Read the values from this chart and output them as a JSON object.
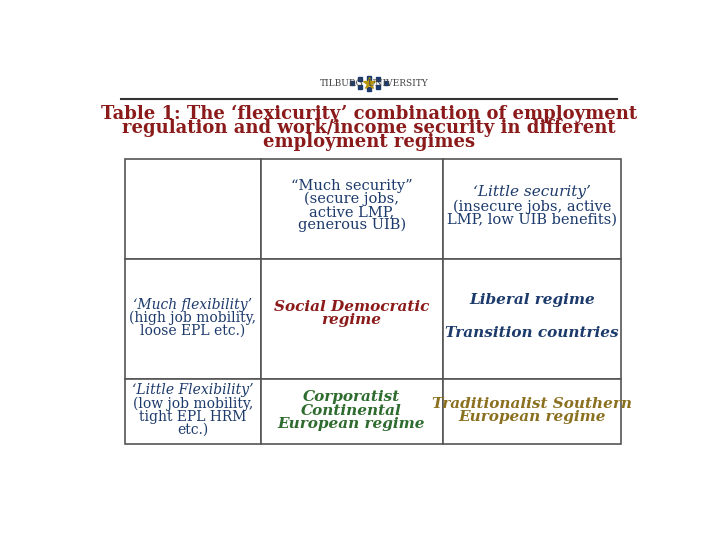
{
  "title_line1": "Table 1: The ‘flexicurity’ combination of employment",
  "title_line2": "regulation and work/income security in different",
  "title_line3": "employment regimes",
  "title_color": "#8B1A1A",
  "bg_color": "#FFFFFF",
  "header_line_color": "#333333",
  "table_border_color": "#555555",
  "col1_header_line1": "“Much security”",
  "col1_header_line2": "(secure jobs,",
  "col1_header_line3": "active LMP,",
  "col1_header_line4": "generous UIB)",
  "col1_header_color": "#1C3A6B",
  "col2_header_line1": "‘Little security’",
  "col2_header_line2": "(insecure jobs, active",
  "col2_header_line3": "LMP, low UIB benefits)",
  "col2_header_color": "#1C3A6B",
  "row1_col0_line1": "‘Much flexibility’",
  "row1_col0_line2": "(high job mobility,",
  "row1_col0_line3": "loose EPL etc.)",
  "row1_col0_color": "#1C3A6B",
  "row1_col1_line1": "Social Democratic",
  "row1_col1_line2": "regime",
  "row1_col1_color": "#8B1A1A",
  "row1_col2_line1": "Liberal regime",
  "row1_col2_color": "#1C3A6B",
  "row1_col2b_line1": "Transition countries",
  "row1_col2b_color": "#1C3A6B",
  "row2_col0_line1": "‘Little Flexibility’",
  "row2_col0_line2": "(low job mobility,",
  "row2_col0_line3": "tight EPL HRM",
  "row2_col0_line4": "etc.)",
  "row2_col0_color": "#1C3A6B",
  "row2_col1_line1": "Corporatist",
  "row2_col1_line2": "Continental",
  "row2_col1_line3": "European regime",
  "row2_col1_color": "#2E6B2E",
  "row2_col2_line1": "Traditionalist Southern",
  "row2_col2_line2": "European regime",
  "row2_col2_color": "#8B7020"
}
